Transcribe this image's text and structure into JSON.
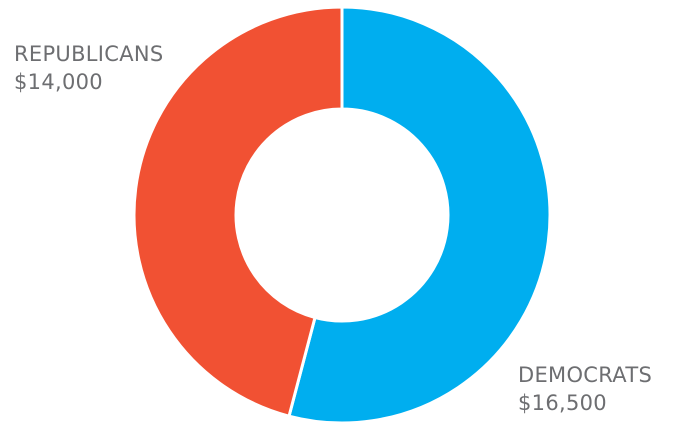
{
  "chart_data": {
    "type": "pie",
    "donut": true,
    "title": "",
    "start": "top-clockwise",
    "slices": [
      {
        "name": "DEMOCRATS",
        "value": 16500,
        "value_label": "$16,500",
        "color": "#00aeef"
      },
      {
        "name": "REPUBLICANS",
        "value": 14000,
        "value_label": "$14,000",
        "color": "#f15133"
      }
    ],
    "label_color": "#6d6e71",
    "background": "#ffffff"
  }
}
